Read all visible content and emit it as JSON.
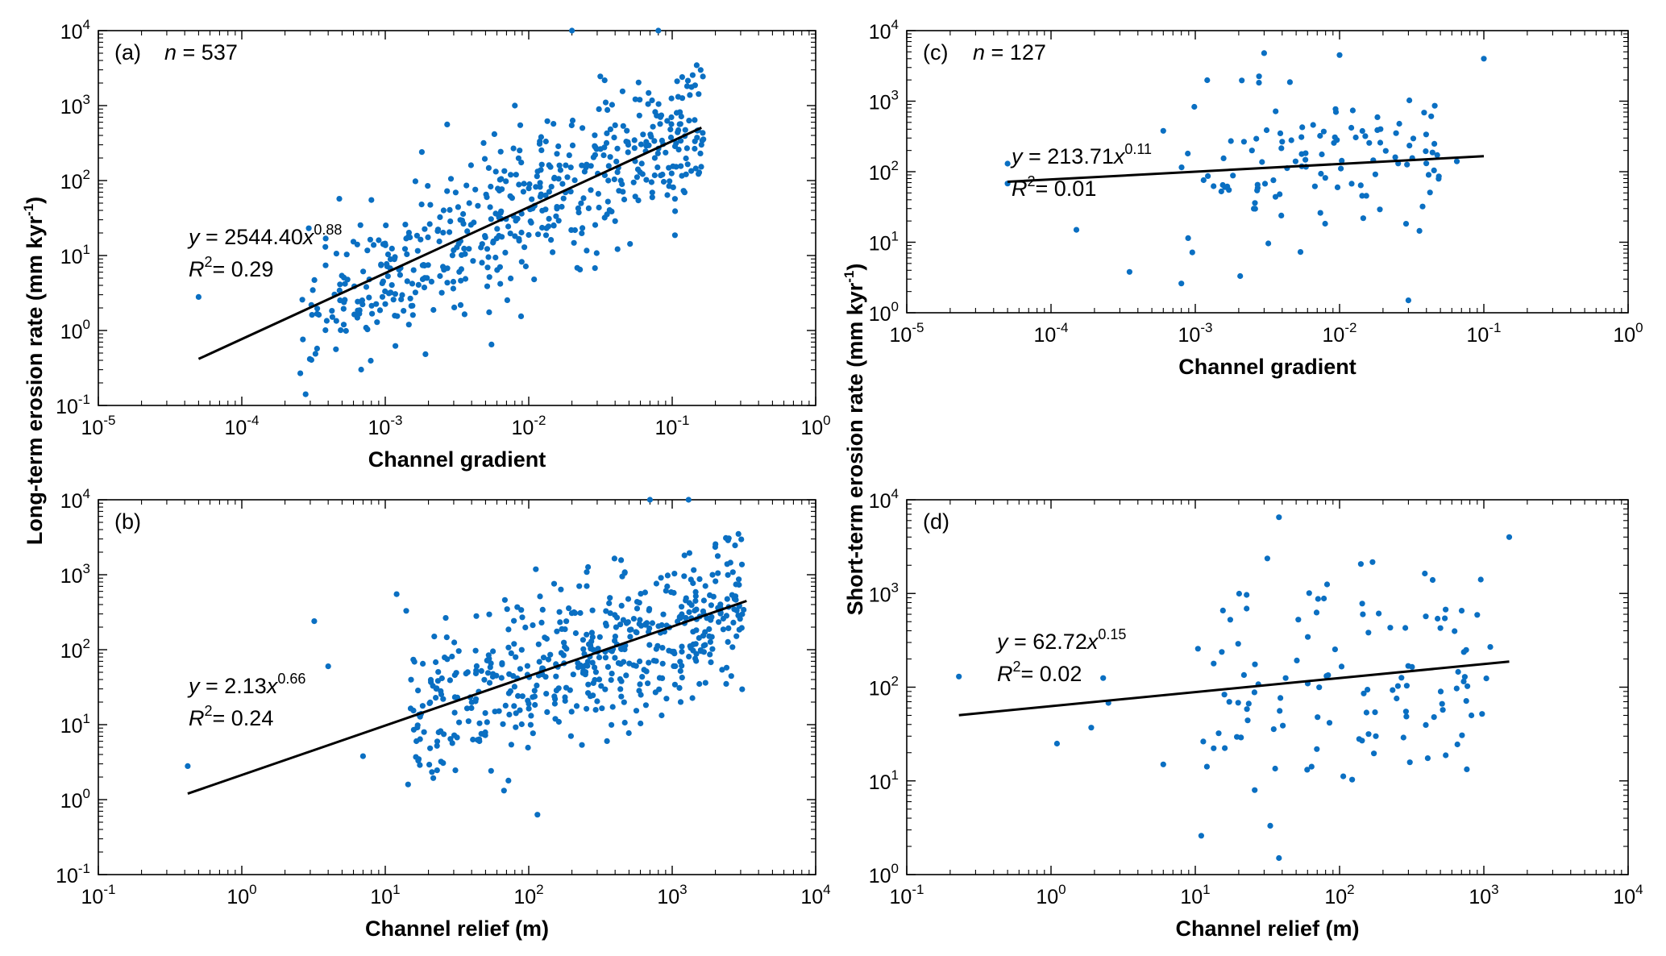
{
  "figure": {
    "ylabel_left_prefix": "Long-term erosion rate (mm  kyr",
    "ylabel_left_exp": "-1",
    "ylabel_left_suffix": ")",
    "ylabel_right_prefix": "Short-term erosion rate (mm  kyr",
    "ylabel_right_exp": "-1",
    "ylabel_right_suffix": ")",
    "point_color": "#0a6fc2",
    "line_color": "#000000"
  },
  "chart_data": [
    {
      "id": "a",
      "type": "scatter",
      "panel_label": "(a)",
      "n_italic": "n",
      "n_text": " = 537",
      "xlabel": "Channel gradient",
      "xscale": "log",
      "yscale": "log",
      "xlim": [
        1e-05,
        1
      ],
      "ylim": [
        0.1,
        10000
      ],
      "xtick_exponents": [
        "-5",
        "-4",
        "-3",
        "-2",
        "-1",
        "0"
      ],
      "ytick_exponents": [
        "-1",
        "0",
        "1",
        "2",
        "3",
        "4"
      ],
      "fit": {
        "a": 2544.4,
        "b": 0.88,
        "x_range": [
          5e-05,
          0.16
        ],
        "eq_prefix": "y",
        "eq_mid": " = 2544.40",
        "eq_var": "x",
        "eq_exp": "0.88",
        "r2_prefix": "R",
        "r2_exp": "2",
        "r2_text": "= 0.29"
      },
      "cloud": {
        "count": 537,
        "seed": 11,
        "x_log_range": [
          -3.6,
          -0.78
        ],
        "scatter": 0.62
      },
      "extra_points": [
        [
          5e-05,
          2.8
        ],
        [
          0.0008,
          55
        ],
        [
          0.0009,
          16
        ],
        [
          0.0018,
          240
        ],
        [
          0.0027,
          560
        ],
        [
          0.0055,
          0.65
        ],
        [
          0.008,
          1000
        ],
        [
          0.02,
          10000
        ],
        [
          0.08,
          10000
        ],
        [
          0.16,
          300
        ]
      ]
    },
    {
      "id": "b",
      "type": "scatter",
      "panel_label": "(b)",
      "xlabel": "Channel relief (m)",
      "xscale": "log",
      "yscale": "log",
      "xlim": [
        0.1,
        10000
      ],
      "ylim": [
        0.1,
        10000
      ],
      "xtick_exponents": [
        "-1",
        "0",
        "1",
        "2",
        "3",
        "4"
      ],
      "ytick_exponents": [
        "-1",
        "0",
        "1",
        "2",
        "3",
        "4"
      ],
      "fit": {
        "a": 2.13,
        "b": 0.66,
        "x_range": [
          0.42,
          3300
        ],
        "eq_prefix": "y",
        "eq_mid": " = 2.13",
        "eq_var": "x",
        "eq_exp": "0.66",
        "r2_prefix": "R",
        "r2_exp": "2",
        "r2_text": "= 0.24"
      },
      "cloud": {
        "count": 537,
        "seed": 23,
        "x_log_range": [
          1.15,
          3.5
        ],
        "scatter": 0.62
      },
      "extra_points": [
        [
          0.42,
          2.8
        ],
        [
          3.2,
          240
        ],
        [
          4,
          60
        ],
        [
          7,
          3.8
        ],
        [
          12,
          550
        ],
        [
          14,
          330
        ],
        [
          115,
          0.63
        ],
        [
          700,
          10000
        ],
        [
          1300,
          10000
        ]
      ]
    },
    {
      "id": "c",
      "type": "scatter",
      "panel_label": "(c)",
      "n_italic": "n",
      "n_text": " = 127",
      "xlabel": "Channel gradient",
      "xscale": "log",
      "yscale": "log",
      "xlim": [
        1e-05,
        1
      ],
      "ylim": [
        1,
        10000
      ],
      "xtick_exponents": [
        "-5",
        "-4",
        "-3",
        "-2",
        "-1",
        "0"
      ],
      "ytick_exponents": [
        "0",
        "1",
        "2",
        "3",
        "4"
      ],
      "fit": {
        "a": 213.71,
        "b": 0.11,
        "x_range": [
          5e-05,
          0.1
        ],
        "eq_prefix": "y",
        "eq_mid": " = 213.71",
        "eq_var": "x",
        "eq_exp": "0.11",
        "r2_prefix": "R",
        "r2_exp": "2",
        "r2_text": "= 0.01"
      },
      "cloud": {
        "count": 127,
        "seed": 37,
        "x_log_range": [
          -3.1,
          -1.3
        ],
        "scatter": 0.72
      },
      "extra_points": [
        [
          5e-05,
          130
        ],
        [
          5e-05,
          68
        ],
        [
          0.00015,
          15
        ],
        [
          0.00035,
          3.8
        ],
        [
          0.0006,
          380
        ],
        [
          0.0008,
          2.6
        ],
        [
          0.003,
          4800
        ],
        [
          0.01,
          4500
        ],
        [
          0.03,
          1.5
        ],
        [
          0.065,
          140
        ],
        [
          0.1,
          4000
        ]
      ]
    },
    {
      "id": "d",
      "type": "scatter",
      "panel_label": "(d)",
      "xlabel": "Channel relief (m)",
      "xscale": "log",
      "yscale": "log",
      "xlim": [
        0.1,
        10000
      ],
      "ylim": [
        1,
        10000
      ],
      "xtick_exponents": [
        "-1",
        "0",
        "1",
        "2",
        "3",
        "4"
      ],
      "ytick_exponents": [
        "0",
        "1",
        "2",
        "3",
        "4"
      ],
      "fit": {
        "a": 62.72,
        "b": 0.15,
        "x_range": [
          0.23,
          1500
        ],
        "eq_prefix": "y",
        "eq_mid": " = 62.72",
        "eq_var": "x",
        "eq_exp": "0.15",
        "r2_prefix": "R",
        "r2_exp": "2",
        "r2_text": "= 0.02"
      },
      "cloud": {
        "count": 127,
        "seed": 53,
        "x_log_range": [
          0.95,
          3.05
        ],
        "scatter": 0.72
      },
      "extra_points": [
        [
          0.23,
          130
        ],
        [
          1.1,
          25
        ],
        [
          1.9,
          37
        ],
        [
          2.3,
          125
        ],
        [
          2.5,
          68
        ],
        [
          6,
          15
        ],
        [
          11,
          2.6
        ],
        [
          38,
          1.5
        ],
        [
          38,
          6500
        ],
        [
          1500,
          4000
        ]
      ]
    }
  ]
}
